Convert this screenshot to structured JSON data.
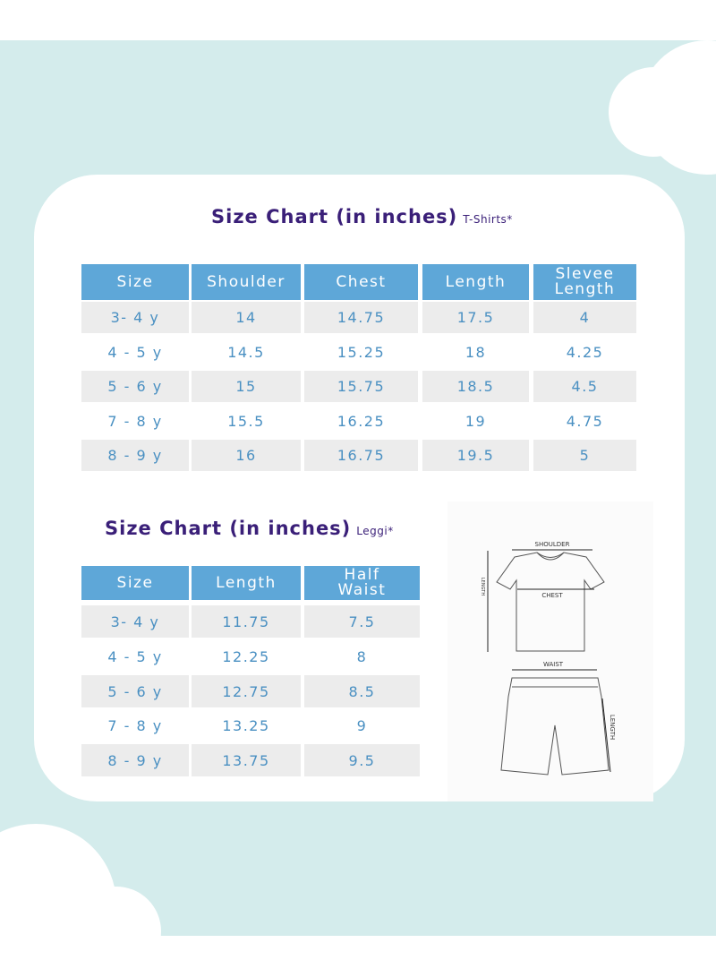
{
  "tshirt_chart": {
    "title": "Size Chart (in inches)",
    "subtitle": "T-Shirts*",
    "header": [
      "Size",
      "Shoulder",
      "Chest",
      "Length",
      "Slevee Length"
    ],
    "rows": [
      [
        "3- 4 y",
        "14",
        "14.75",
        "17.5",
        "4"
      ],
      [
        "4 - 5 y",
        "14.5",
        "15.25",
        "18",
        "4.25"
      ],
      [
        "5 - 6 y",
        "15",
        "15.75",
        "18.5",
        "4.5"
      ],
      [
        "7 - 8 y",
        "15.5",
        "16.25",
        "19",
        "4.75"
      ],
      [
        "8 - 9 y",
        "16",
        "16.75",
        "19.5",
        "5"
      ]
    ]
  },
  "leggings_chart": {
    "title": "Size Chart (in inches)",
    "subtitle": "Leggi*",
    "header": [
      "Size",
      "Length",
      "Half Waist"
    ],
    "rows": [
      [
        "3- 4 y",
        "11.75",
        "7.5"
      ],
      [
        "4 - 5 y",
        "12.25",
        "8"
      ],
      [
        "5 - 6 y",
        "12.75",
        "8.5"
      ],
      [
        "7 - 8 y",
        "13.25",
        "9"
      ],
      [
        "8 - 9 y",
        "13.75",
        "9.5"
      ]
    ]
  },
  "diagram": {
    "shirt_labels": [
      "SHOULDER",
      "CHEST",
      "LENGTH"
    ],
    "shorts_labels": [
      "WAIST",
      "LENGTH"
    ]
  }
}
